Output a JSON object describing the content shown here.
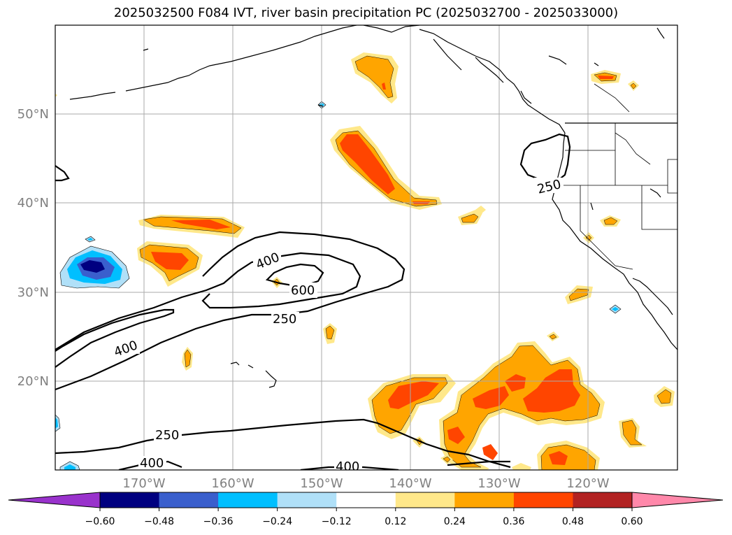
{
  "title": "2025032500 F084 IVT, river basin precipitation PC (2025032700 - 2025033000)",
  "map": {
    "lat_labels": [
      "50°N",
      "40°N",
      "30°N",
      "20°N"
    ],
    "lon_labels": [
      "170°W",
      "160°W",
      "150°W",
      "140°W",
      "130°W",
      "120°W"
    ],
    "contour_labels": [
      "250",
      "400",
      "600",
      "250",
      "400",
      "250",
      "400",
      "400"
    ]
  },
  "colorbar": {
    "ticks": [
      "−0.60",
      "−0.48",
      "−0.36",
      "−0.24",
      "−0.12",
      "0.12",
      "0.24",
      "0.36",
      "0.48",
      "0.60"
    ],
    "under_color": "#9932cc",
    "over_color": "#ff88aa",
    "colors": [
      "#000080",
      "#3a5fcd",
      "#00bfff",
      "#b0e0f8",
      "#ffffff",
      "#ffe88a",
      "#ffa500",
      "#ff4500",
      "#b22222"
    ]
  },
  "palette": {
    "yellow": "#ffe88a",
    "orange": "#ffa500",
    "red": "#ff4500",
    "lightblue": "#b0e0f8",
    "cyan": "#00bfff",
    "blue": "#3a5fcd",
    "navy": "#000080"
  }
}
